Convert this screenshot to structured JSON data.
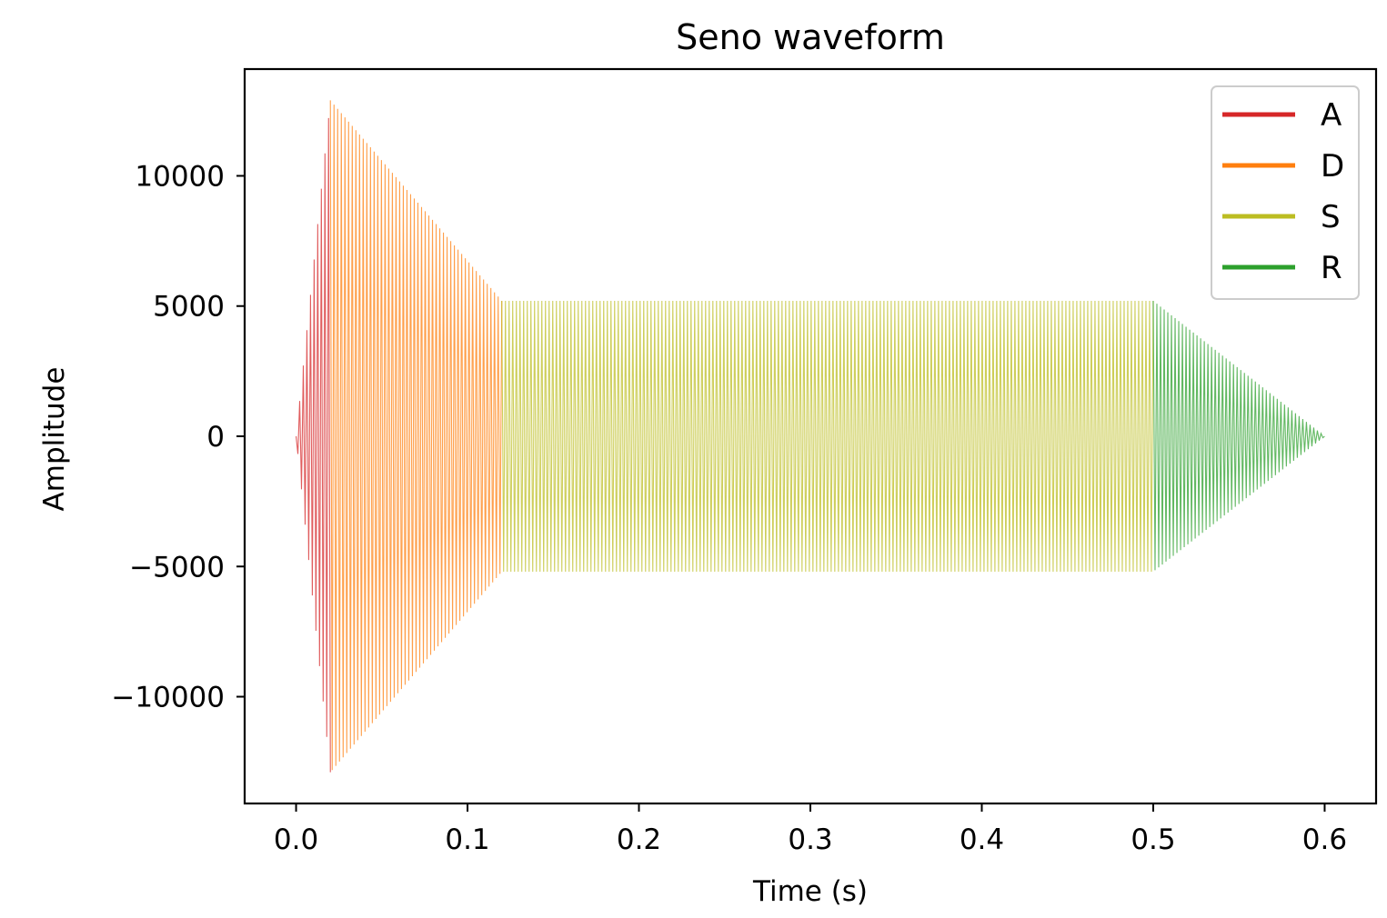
{
  "chart_data": {
    "type": "line",
    "title": "Seno waveform",
    "xlabel": "Time (s)",
    "ylabel": "Amplitude",
    "xlim": [
      -0.03,
      0.63
    ],
    "ylim": [
      -14100,
      14100
    ],
    "x_ticks": [
      0.0,
      0.1,
      0.2,
      0.3,
      0.4,
      0.5,
      0.6
    ],
    "x_tick_labels": [
      "0.0",
      "0.1",
      "0.2",
      "0.3",
      "0.4",
      "0.5",
      "0.6"
    ],
    "y_ticks": [
      10000,
      5000,
      0,
      -5000,
      -10000
    ],
    "y_tick_labels": [
      "10000",
      "5000",
      "0",
      "−5000",
      "−10000"
    ],
    "grid": false,
    "legend_position": "top-right",
    "waveform": "sine",
    "series": [
      {
        "name": "A",
        "color": "#d62728",
        "t_start": 0.0,
        "t_end": 0.02,
        "amp_start": 0,
        "amp_end": 12900
      },
      {
        "name": "D",
        "color": "#ff7f0e",
        "t_start": 0.02,
        "t_end": 0.12,
        "amp_start": 12900,
        "amp_end": 5200
      },
      {
        "name": "S",
        "color": "#bcbd22",
        "t_start": 0.12,
        "t_end": 0.5,
        "amp_start": 5200,
        "amp_end": 5200
      },
      {
        "name": "R",
        "color": "#2ca02c",
        "t_start": 0.5,
        "t_end": 0.6,
        "amp_start": 5200,
        "amp_end": 0
      }
    ]
  }
}
